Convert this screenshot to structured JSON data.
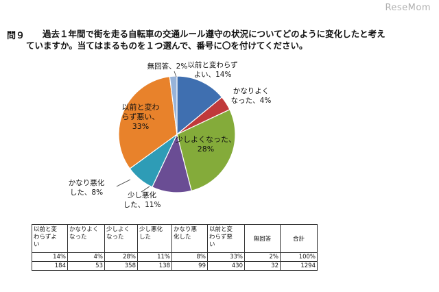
{
  "watermark": "ReseMom",
  "question": {
    "number": "問９",
    "line1": "過去１年間で街を走る自転車の交通ルール遵守の状況についてどのように変化したと考え",
    "line2": "ていますか。当てはまるものを１つ選んで、番号に〇を付けてください。"
  },
  "chart_data": {
    "type": "pie",
    "slices": [
      {
        "label_lines": [
          "以前と変わらず",
          "よい、14%"
        ],
        "value": 14,
        "color": "#3f6fb0"
      },
      {
        "label_lines": [
          "かなりよく",
          "なった、4%"
        ],
        "value": 4,
        "color": "#c0393b"
      },
      {
        "label_lines": [
          "少しよくなった、",
          "28%"
        ],
        "value": 28,
        "color": "#84ab3a"
      },
      {
        "label_lines": [
          "少し悪化",
          "した、11%"
        ],
        "value": 11,
        "color": "#6a4d94"
      },
      {
        "label_lines": [
          "かなり悪化",
          "した、8%"
        ],
        "value": 8,
        "color": "#2e9cb6"
      },
      {
        "label_lines": [
          "以前と変わ",
          "らず悪い、",
          "33%"
        ],
        "value": 33,
        "color": "#e8822b"
      },
      {
        "label_lines": [
          "無回答、2%"
        ],
        "value": 2,
        "color": "#97b3d9"
      }
    ]
  },
  "table": {
    "headers": [
      [
        "以前と変",
        "わらずよ",
        "い"
      ],
      [
        "かなりよく",
        "なった"
      ],
      [
        "少しよく",
        "なった"
      ],
      [
        "少し悪化",
        "した"
      ],
      [
        "かなり悪",
        "化した"
      ],
      [
        "以前と変",
        "わらず悪",
        "い"
      ],
      [
        "無回答"
      ],
      [
        "合計"
      ]
    ],
    "percent_row": [
      "14%",
      "4%",
      "28%",
      "11%",
      "8%",
      "33%",
      "2%",
      "100%"
    ],
    "count_row": [
      "184",
      "53",
      "358",
      "138",
      "99",
      "430",
      "32",
      "1294"
    ]
  }
}
